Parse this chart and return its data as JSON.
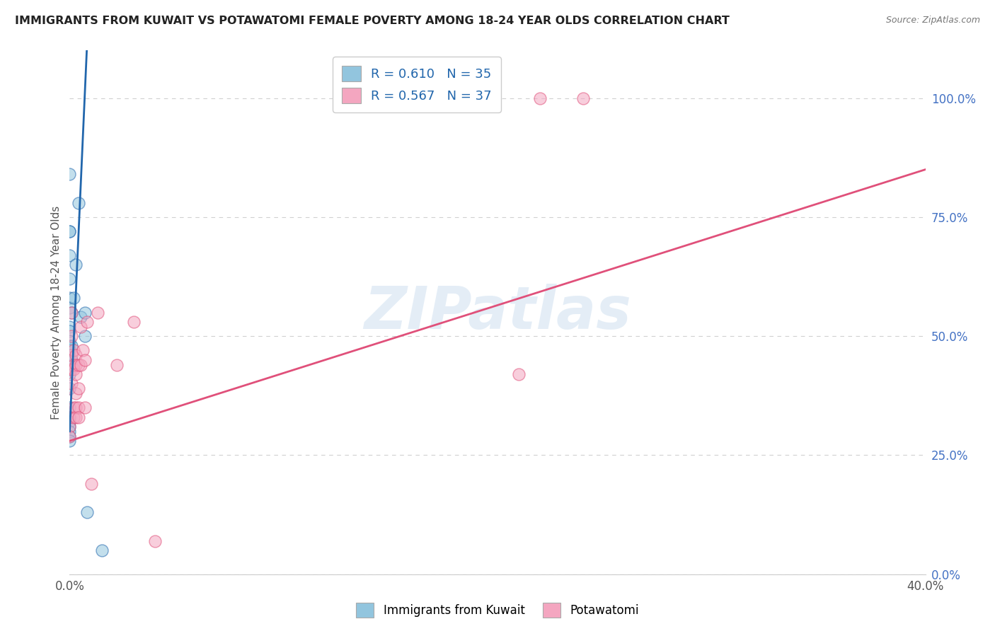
{
  "title": "IMMIGRANTS FROM KUWAIT VS POTAWATOMI FEMALE POVERTY AMONG 18-24 YEAR OLDS CORRELATION CHART",
  "source": "Source: ZipAtlas.com",
  "ylabel": "Female Poverty Among 18-24 Year Olds",
  "xlabel_blue": "Immigrants from Kuwait",
  "xlabel_pink": "Potawatomi",
  "legend_blue_r": "R = 0.610",
  "legend_blue_n": "N = 35",
  "legend_pink_r": "R = 0.567",
  "legend_pink_n": "N = 37",
  "watermark": "ZIPatlas",
  "blue_color": "#92c5de",
  "pink_color": "#f4a6c0",
  "blue_line_color": "#2166ac",
  "pink_line_color": "#e0507a",
  "blue_scatter": [
    [
      0.0,
      0.84
    ],
    [
      0.0,
      0.72
    ],
    [
      0.0,
      0.72
    ],
    [
      0.0,
      0.67
    ],
    [
      0.0,
      0.62
    ],
    [
      0.0,
      0.58
    ],
    [
      0.0,
      0.56
    ],
    [
      0.0,
      0.52
    ],
    [
      0.0,
      0.51
    ],
    [
      0.0,
      0.49
    ],
    [
      0.0,
      0.48
    ],
    [
      0.0,
      0.47
    ],
    [
      0.0,
      0.46
    ],
    [
      0.0,
      0.44
    ],
    [
      0.0,
      0.43
    ],
    [
      0.0,
      0.42
    ],
    [
      0.0,
      0.39
    ],
    [
      0.0,
      0.35
    ],
    [
      0.0,
      0.33
    ],
    [
      0.0,
      0.32
    ],
    [
      0.0,
      0.31
    ],
    [
      0.0,
      0.3
    ],
    [
      0.0,
      0.29
    ],
    [
      0.0,
      0.28
    ],
    [
      0.001,
      0.48
    ],
    [
      0.001,
      0.45
    ],
    [
      0.001,
      0.55
    ],
    [
      0.002,
      0.58
    ],
    [
      0.003,
      0.65
    ],
    [
      0.004,
      0.78
    ],
    [
      0.005,
      0.54
    ],
    [
      0.007,
      0.55
    ],
    [
      0.007,
      0.5
    ],
    [
      0.008,
      0.13
    ],
    [
      0.015,
      0.05
    ]
  ],
  "pink_scatter": [
    [
      0.0,
      0.33
    ],
    [
      0.0,
      0.31
    ],
    [
      0.0,
      0.29
    ],
    [
      0.001,
      0.55
    ],
    [
      0.001,
      0.5
    ],
    [
      0.001,
      0.46
    ],
    [
      0.001,
      0.43
    ],
    [
      0.001,
      0.4
    ],
    [
      0.002,
      0.47
    ],
    [
      0.002,
      0.44
    ],
    [
      0.002,
      0.43
    ],
    [
      0.002,
      0.35
    ],
    [
      0.002,
      0.33
    ],
    [
      0.003,
      0.46
    ],
    [
      0.003,
      0.44
    ],
    [
      0.003,
      0.42
    ],
    [
      0.003,
      0.38
    ],
    [
      0.003,
      0.35
    ],
    [
      0.003,
      0.33
    ],
    [
      0.004,
      0.44
    ],
    [
      0.004,
      0.39
    ],
    [
      0.004,
      0.35
    ],
    [
      0.004,
      0.33
    ],
    [
      0.005,
      0.52
    ],
    [
      0.005,
      0.44
    ],
    [
      0.006,
      0.47
    ],
    [
      0.007,
      0.45
    ],
    [
      0.007,
      0.35
    ],
    [
      0.008,
      0.53
    ],
    [
      0.01,
      0.19
    ],
    [
      0.013,
      0.55
    ],
    [
      0.022,
      0.44
    ],
    [
      0.03,
      0.53
    ],
    [
      0.04,
      0.07
    ],
    [
      0.21,
      0.42
    ],
    [
      0.22,
      1.0
    ],
    [
      0.24,
      1.0
    ]
  ],
  "blue_line": {
    "x0": 0.0,
    "y0": 0.3,
    "x1": 0.008,
    "y1": 1.1
  },
  "pink_line": {
    "x0": 0.0,
    "y0": 0.28,
    "x1": 0.4,
    "y1": 0.85
  },
  "xmin": 0.0,
  "xmax": 0.4,
  "ymin": 0.0,
  "ymax": 1.1,
  "right_yticks": [
    0.0,
    0.25,
    0.5,
    0.75,
    1.0
  ],
  "right_yticklabels": [
    "0.0%",
    "25.0%",
    "50.0%",
    "75.0%",
    "100.0%"
  ],
  "xtick_vals": [
    0.0,
    0.05,
    0.1,
    0.15,
    0.2,
    0.25,
    0.3,
    0.35,
    0.4
  ],
  "xtick_labels": [
    "0.0%",
    "",
    "",
    "",
    "",
    "",
    "",
    "",
    "40.0%"
  ],
  "background_color": "#ffffff",
  "grid_color": "#d0d0d0"
}
